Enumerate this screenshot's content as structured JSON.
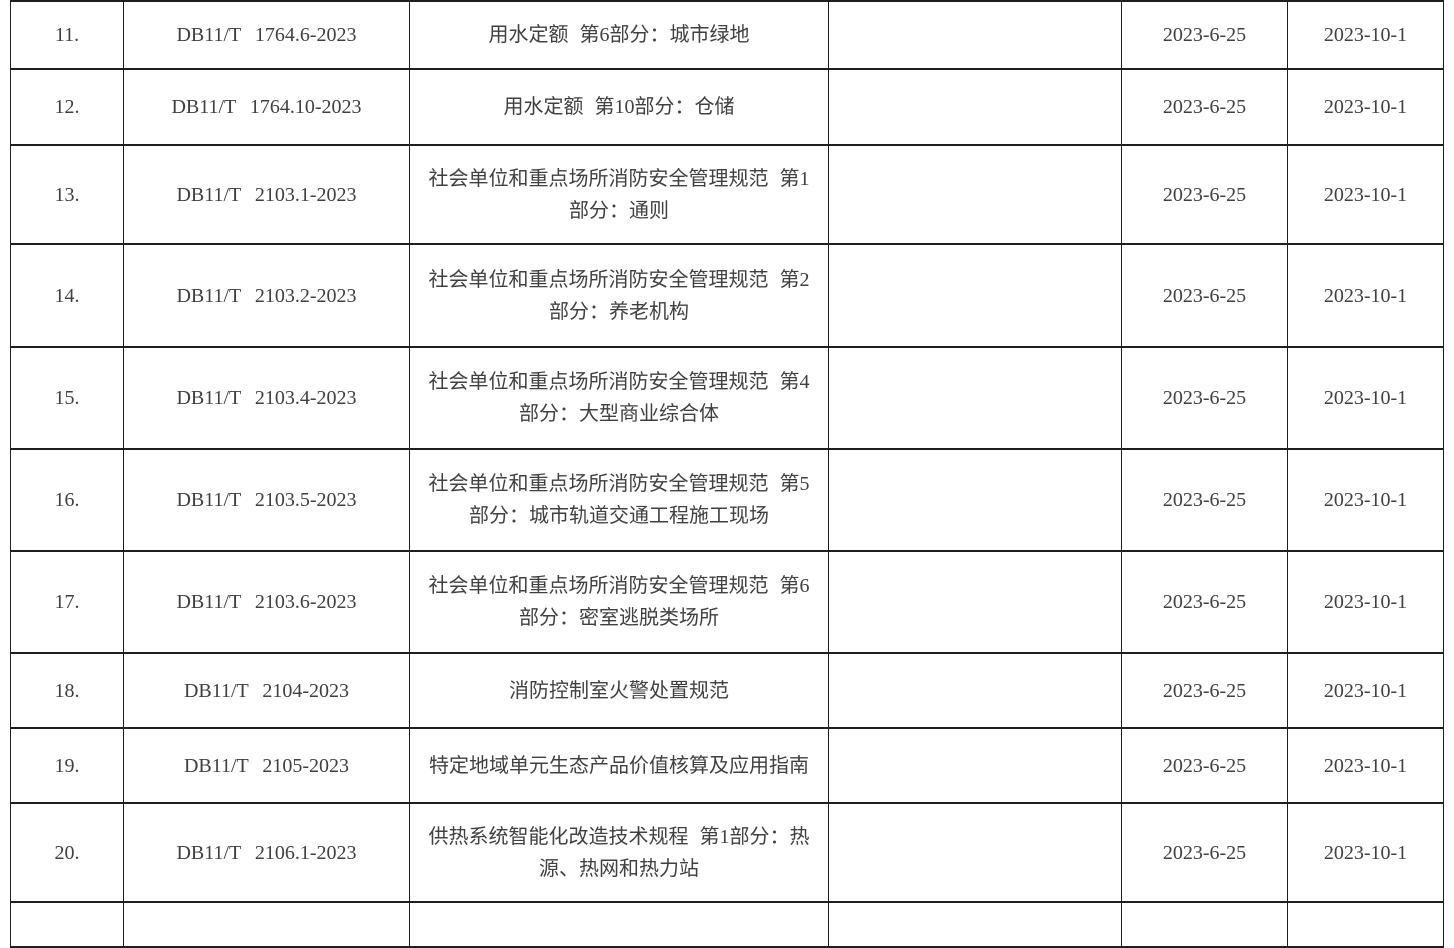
{
  "colors": {
    "text": "#404040",
    "border": "#1f1f1f",
    "background": "#ffffff"
  },
  "table": {
    "rows": [
      {
        "number": "11.",
        "code": "DB11/T 1764.6-2023",
        "title": "用水定额 第6部分：城市绿地",
        "blank": "",
        "date_a": "2023-6-25",
        "date_b": "2023-10-1"
      },
      {
        "number": "12.",
        "code": "DB11/T 1764.10-2023",
        "title": "用水定额 第10部分：仓储",
        "blank": "",
        "date_a": "2023-6-25",
        "date_b": "2023-10-1"
      },
      {
        "number": "13.",
        "code": "DB11/T 2103.1-2023",
        "title": "社会单位和重点场所消防安全管理规范 第1部分：通则",
        "blank": "",
        "date_a": "2023-6-25",
        "date_b": "2023-10-1"
      },
      {
        "number": "14.",
        "code": "DB11/T 2103.2-2023",
        "title": "社会单位和重点场所消防安全管理规范 第2部分：养老机构",
        "blank": "",
        "date_a": "2023-6-25",
        "date_b": "2023-10-1"
      },
      {
        "number": "15.",
        "code": "DB11/T 2103.4-2023",
        "title": "社会单位和重点场所消防安全管理规范 第4部分：大型商业综合体",
        "blank": "",
        "date_a": "2023-6-25",
        "date_b": "2023-10-1"
      },
      {
        "number": "16.",
        "code": "DB11/T 2103.5-2023",
        "title": "社会单位和重点场所消防安全管理规范 第5部分：城市轨道交通工程施工现场",
        "blank": "",
        "date_a": "2023-6-25",
        "date_b": "2023-10-1"
      },
      {
        "number": "17.",
        "code": "DB11/T 2103.6-2023",
        "title": "社会单位和重点场所消防安全管理规范 第6部分：密室逃脱类场所",
        "blank": "",
        "date_a": "2023-6-25",
        "date_b": "2023-10-1"
      },
      {
        "number": "18.",
        "code": "DB11/T 2104-2023",
        "title": "消防控制室火警处置规范",
        "blank": "",
        "date_a": "2023-6-25",
        "date_b": "2023-10-1"
      },
      {
        "number": "19.",
        "code": "DB11/T 2105-2023",
        "title": "特定地域单元生态产品价值核算及应用指南",
        "blank": "",
        "date_a": "2023-6-25",
        "date_b": "2023-10-1"
      },
      {
        "number": "20.",
        "code": "DB11/T 2106.1-2023",
        "title": "供热系统智能化改造技术规程 第1部分：热源、热网和热力站",
        "blank": "",
        "date_a": "2023-6-25",
        "date_b": "2023-10-1"
      },
      {
        "number": "",
        "code": "",
        "title": "",
        "blank": "",
        "date_a": "",
        "date_b": ""
      }
    ]
  }
}
